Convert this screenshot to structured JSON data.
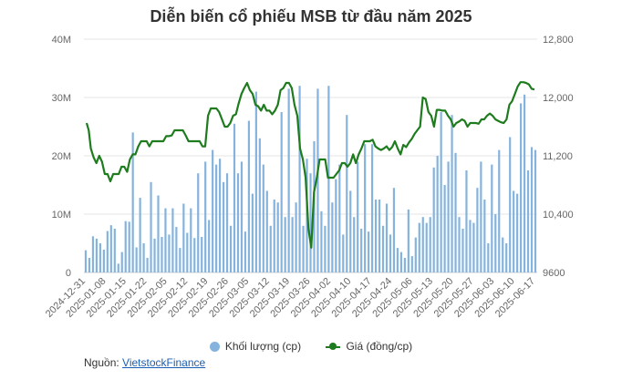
{
  "chart_data": {
    "type": "bar+line",
    "title": "Diễn biến cổ phiếu MSB từ đầu năm 2025",
    "x_tick_labels": [
      "2024-12-31",
      "2025-01-08",
      "2025-01-15",
      "2025-01-22",
      "2025-02-05",
      "2025-02-12",
      "2025-02-19",
      "2025-02-26",
      "2025-03-05",
      "2025-03-12",
      "2025-03-19",
      "2025-03-26",
      "2025-04-02",
      "2025-04-10",
      "2025-04-17",
      "2025-04-24",
      "2025-05-06",
      "2025-05-13",
      "2025-05-20",
      "2025-05-27",
      "2025-06-03",
      "2025-06-10",
      "2025-06-17"
    ],
    "y_left": {
      "ticks": [
        "0",
        "10M",
        "20M",
        "30M",
        "40M"
      ],
      "range": [
        0,
        40000000
      ]
    },
    "y_right": {
      "ticks": [
        "9600",
        "10,400",
        "11,200",
        "12,000",
        "12,800"
      ],
      "range": [
        9600,
        12800
      ]
    },
    "series": [
      {
        "name": "Khối lượng (cp)",
        "type": "bar",
        "color": "#85b3dd",
        "values": [
          3.8,
          2.5,
          6.2,
          5.8,
          5.0,
          3.9,
          7.1,
          8.1,
          7.5,
          1.5,
          3.5,
          8.8,
          8.7,
          24.0,
          4.3,
          12.8,
          5.0,
          2.5,
          15.5,
          5.8,
          13.2,
          6.1,
          11.0,
          6.5,
          11.0,
          7.8,
          4.2,
          11.8,
          6.8,
          11.0,
          5.9,
          17.0,
          6.1,
          19.0,
          9.0,
          21.0,
          18.5,
          19.5,
          15.5,
          17.0,
          8.0,
          25.5,
          17.0,
          19.0,
          7.0,
          26.0,
          13.5,
          31.0,
          23.0,
          18.5,
          14.0,
          8.0,
          12.5,
          12.0,
          27.5,
          9.5,
          31.5,
          9.5,
          12.0,
          32.0,
          8.0,
          19.5,
          17.0,
          22.5,
          31.5,
          10.5,
          8.0,
          32.0,
          12.0,
          16.0,
          18.5,
          6.5,
          27.0,
          14.0,
          9.5,
          19.0,
          7.5,
          22.0,
          7.0,
          22.0,
          12.5,
          12.5,
          8.0,
          11.8,
          6.5,
          14.5,
          4.2,
          3.5,
          2.5,
          10.8,
          2.8,
          6.0,
          8.5,
          9.5,
          8.5,
          9.5,
          18.0,
          20.0,
          27.5,
          15.0,
          19.0,
          27.0,
          20.5,
          9.5,
          7.5,
          17.5,
          9.0,
          8.5,
          14.5,
          19.0,
          12.5,
          5.0,
          18.5,
          10.0,
          21.0,
          6.0,
          5.0,
          23.2,
          14.0,
          13.5,
          29.0,
          30.5,
          17.5,
          21.5,
          21.0
        ],
        "unit": "M"
      },
      {
        "name": "Giá (đồng/cp)",
        "type": "line",
        "color": "#1e7b1e",
        "points": [
          [
            0,
            11650
          ],
          [
            3,
            11550
          ],
          [
            6,
            11300
          ],
          [
            10,
            11180
          ],
          [
            14,
            11100
          ],
          [
            18,
            11200
          ],
          [
            22,
            11120
          ],
          [
            26,
            10950
          ],
          [
            30,
            10950
          ],
          [
            34,
            10850
          ],
          [
            38,
            10950
          ],
          [
            42,
            10950
          ],
          [
            46,
            10950
          ],
          [
            50,
            11050
          ],
          [
            54,
            11050
          ],
          [
            58,
            10980
          ],
          [
            62,
            11150
          ],
          [
            66,
            11220
          ],
          [
            70,
            11220
          ],
          [
            74,
            11330
          ],
          [
            78,
            11400
          ],
          [
            82,
            11400
          ],
          [
            86,
            11400
          ],
          [
            90,
            11330
          ],
          [
            94,
            11400
          ],
          [
            98,
            11400
          ],
          [
            102,
            11400
          ],
          [
            106,
            11400
          ],
          [
            110,
            11400
          ],
          [
            114,
            11470
          ],
          [
            118,
            11470
          ],
          [
            122,
            11480
          ],
          [
            126,
            11550
          ],
          [
            130,
            11550
          ],
          [
            134,
            11550
          ],
          [
            138,
            11550
          ],
          [
            142,
            11480
          ],
          [
            146,
            11400
          ],
          [
            150,
            11400
          ],
          [
            154,
            11400
          ],
          [
            158,
            11400
          ],
          [
            162,
            11400
          ],
          [
            166,
            11330
          ],
          [
            170,
            11330
          ],
          [
            174,
            11750
          ],
          [
            178,
            11850
          ],
          [
            182,
            11850
          ],
          [
            186,
            11850
          ],
          [
            190,
            11800
          ],
          [
            194,
            11700
          ],
          [
            198,
            11600
          ],
          [
            202,
            11600
          ],
          [
            206,
            11650
          ],
          [
            210,
            11750
          ],
          [
            214,
            11770
          ],
          [
            218,
            11920
          ],
          [
            222,
            12050
          ],
          [
            226,
            12130
          ],
          [
            230,
            12200
          ],
          [
            234,
            12100
          ],
          [
            238,
            12050
          ],
          [
            242,
            11900
          ],
          [
            246,
            11880
          ],
          [
            250,
            11820
          ],
          [
            254,
            11900
          ],
          [
            258,
            11820
          ],
          [
            262,
            11820
          ],
          [
            266,
            11770
          ],
          [
            270,
            11820
          ],
          [
            274,
            11900
          ],
          [
            278,
            12100
          ],
          [
            282,
            12130
          ],
          [
            286,
            12200
          ],
          [
            290,
            12200
          ],
          [
            294,
            12130
          ],
          [
            298,
            11900
          ],
          [
            302,
            11750
          ],
          [
            306,
            11300
          ],
          [
            310,
            11150
          ],
          [
            314,
            10900
          ],
          [
            318,
            10200
          ],
          [
            322,
            9940
          ],
          [
            326,
            10700
          ],
          [
            330,
            10900
          ],
          [
            334,
            11150
          ],
          [
            338,
            11150
          ],
          [
            342,
            11150
          ],
          [
            346,
            10900
          ],
          [
            350,
            10900
          ],
          [
            354,
            10900
          ],
          [
            358,
            10950
          ],
          [
            362,
            11000
          ],
          [
            366,
            11100
          ],
          [
            370,
            11100
          ],
          [
            374,
            11050
          ],
          [
            378,
            11100
          ],
          [
            382,
            11220
          ],
          [
            386,
            11100
          ],
          [
            390,
            11220
          ],
          [
            394,
            11300
          ],
          [
            398,
            11400
          ],
          [
            402,
            11400
          ],
          [
            406,
            11400
          ],
          [
            410,
            11420
          ],
          [
            414,
            11330
          ],
          [
            418,
            11300
          ],
          [
            422,
            11280
          ],
          [
            426,
            11300
          ],
          [
            430,
            11330
          ],
          [
            434,
            11280
          ],
          [
            438,
            11320
          ],
          [
            442,
            11400
          ],
          [
            446,
            11300
          ],
          [
            450,
            11220
          ],
          [
            454,
            11350
          ],
          [
            458,
            11320
          ],
          [
            462,
            11380
          ],
          [
            466,
            11430
          ],
          [
            470,
            11500
          ],
          [
            474,
            11550
          ],
          [
            478,
            11600
          ],
          [
            482,
            12000
          ],
          [
            486,
            11980
          ],
          [
            490,
            11800
          ],
          [
            494,
            11750
          ],
          [
            498,
            11600
          ],
          [
            502,
            11830
          ],
          [
            506,
            11830
          ],
          [
            510,
            11820
          ],
          [
            514,
            11820
          ],
          [
            518,
            11750
          ],
          [
            522,
            11700
          ],
          [
            526,
            11600
          ],
          [
            530,
            11650
          ],
          [
            534,
            11670
          ],
          [
            538,
            11700
          ],
          [
            542,
            11680
          ],
          [
            546,
            11600
          ],
          [
            550,
            11650
          ],
          [
            554,
            11650
          ],
          [
            558,
            11650
          ],
          [
            562,
            11640
          ],
          [
            566,
            11700
          ],
          [
            570,
            11700
          ],
          [
            574,
            11750
          ],
          [
            578,
            11780
          ],
          [
            582,
            11750
          ],
          [
            586,
            11700
          ],
          [
            590,
            11680
          ],
          [
            594,
            11660
          ],
          [
            598,
            11650
          ],
          [
            602,
            11700
          ],
          [
            606,
            11900
          ],
          [
            610,
            11950
          ],
          [
            614,
            12050
          ],
          [
            618,
            12150
          ],
          [
            622,
            12210
          ],
          [
            626,
            12210
          ],
          [
            630,
            12200
          ],
          [
            634,
            12180
          ],
          [
            638,
            12120
          ],
          [
            642,
            12110
          ]
        ]
      }
    ],
    "legend_position": "bottom",
    "grid": "horizontal"
  },
  "legend": {
    "bar_label": "Khối lượng (cp)",
    "line_label": "Giá (đồng/cp)"
  },
  "source": {
    "prefix": "Nguồn:",
    "link_text": "VietstockFinance"
  }
}
